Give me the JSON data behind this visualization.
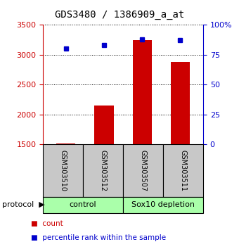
{
  "title": "GDS3480 / 1386909_a_at",
  "samples": [
    "GSM303510",
    "GSM303512",
    "GSM303507",
    "GSM303511"
  ],
  "counts": [
    1510,
    2150,
    3250,
    2880
  ],
  "percentiles": [
    80,
    83,
    88,
    87
  ],
  "ylim_left": [
    1500,
    3500
  ],
  "ylim_right": [
    0,
    100
  ],
  "yticks_left": [
    1500,
    2000,
    2500,
    3000,
    3500
  ],
  "yticks_right": [
    0,
    25,
    50,
    75,
    100
  ],
  "ytick_labels_right": [
    "0",
    "25",
    "50",
    "75",
    "100%"
  ],
  "bar_color": "#cc0000",
  "marker_color": "#0000cc",
  "bar_width": 0.5,
  "left_axis_color": "#cc0000",
  "right_axis_color": "#0000cc",
  "bg_color": "#ffffff",
  "gray_box_color": "#c8c8c8",
  "gray_box_border": "#000000",
  "green_box_color": "#aaffaa",
  "green_box_border": "#000000"
}
